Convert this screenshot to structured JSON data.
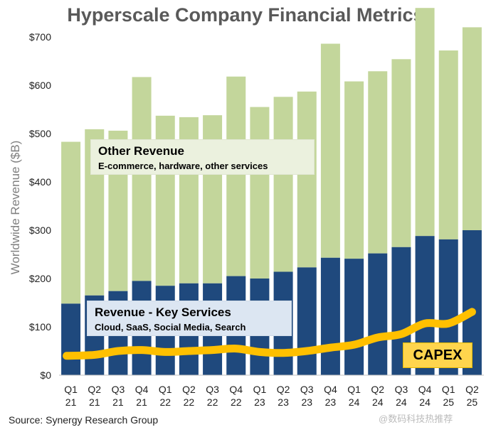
{
  "chart_data": {
    "type": "bar",
    "stacked": true,
    "title": "Hyperscale Company Financial Metrics",
    "ylabel": "Worldwide Revenue ($B)",
    "ylim": [
      0,
      750
    ],
    "yticks": [
      {
        "value": 0,
        "label": "$0"
      },
      {
        "value": 100,
        "label": "$100"
      },
      {
        "value": 200,
        "label": "$200"
      },
      {
        "value": 300,
        "label": "$300"
      },
      {
        "value": 400,
        "label": "$400"
      },
      {
        "value": 500,
        "label": "$500"
      },
      {
        "value": 600,
        "label": "$600"
      },
      {
        "value": 700,
        "label": "$700"
      }
    ],
    "categories": [
      {
        "q": "Q1",
        "y": "21"
      },
      {
        "q": "Q2",
        "y": "21"
      },
      {
        "q": "Q3",
        "y": "21"
      },
      {
        "q": "Q4",
        "y": "21"
      },
      {
        "q": "Q1",
        "y": "22"
      },
      {
        "q": "Q2",
        "y": "22"
      },
      {
        "q": "Q3",
        "y": "22"
      },
      {
        "q": "Q4",
        "y": "22"
      },
      {
        "q": "Q1",
        "y": "23"
      },
      {
        "q": "Q2",
        "y": "23"
      },
      {
        "q": "Q3",
        "y": "23"
      },
      {
        "q": "Q4",
        "y": "23"
      },
      {
        "q": "Q1",
        "y": "24"
      },
      {
        "q": "Q2",
        "y": "24"
      },
      {
        "q": "Q3",
        "y": "24"
      },
      {
        "q": "Q4",
        "y": "24"
      },
      {
        "q": "Q1",
        "y": "25"
      },
      {
        "q": "Q2",
        "y": "25"
      }
    ],
    "key_revenue": [
      148,
      165,
      174,
      195,
      185,
      190,
      190,
      205,
      200,
      214,
      223,
      243,
      241,
      252,
      265,
      288,
      281,
      300
    ],
    "total_revenue": [
      483,
      509,
      506,
      617,
      537,
      534,
      538,
      618,
      555,
      576,
      587,
      686,
      608,
      629,
      654,
      760,
      672,
      720
    ],
    "capex": [
      40,
      42,
      50,
      52,
      48,
      50,
      52,
      55,
      48,
      46,
      50,
      57,
      63,
      78,
      85,
      107,
      107,
      131
    ],
    "colors": {
      "key": "#1f497d",
      "other": "#c3d69b",
      "capex": "#ffc000"
    },
    "annotations": {
      "other_title": "Other Revenue",
      "other_subtitle": "E-commerce, hardware, other services",
      "key_title": "Revenue - Key Services",
      "key_subtitle": "Cloud, SaaS, Social Media, Search",
      "capex_label": "CAPEX"
    },
    "source": "Source: Synergy Research Group",
    "watermark": "@数码科技热推荐"
  }
}
